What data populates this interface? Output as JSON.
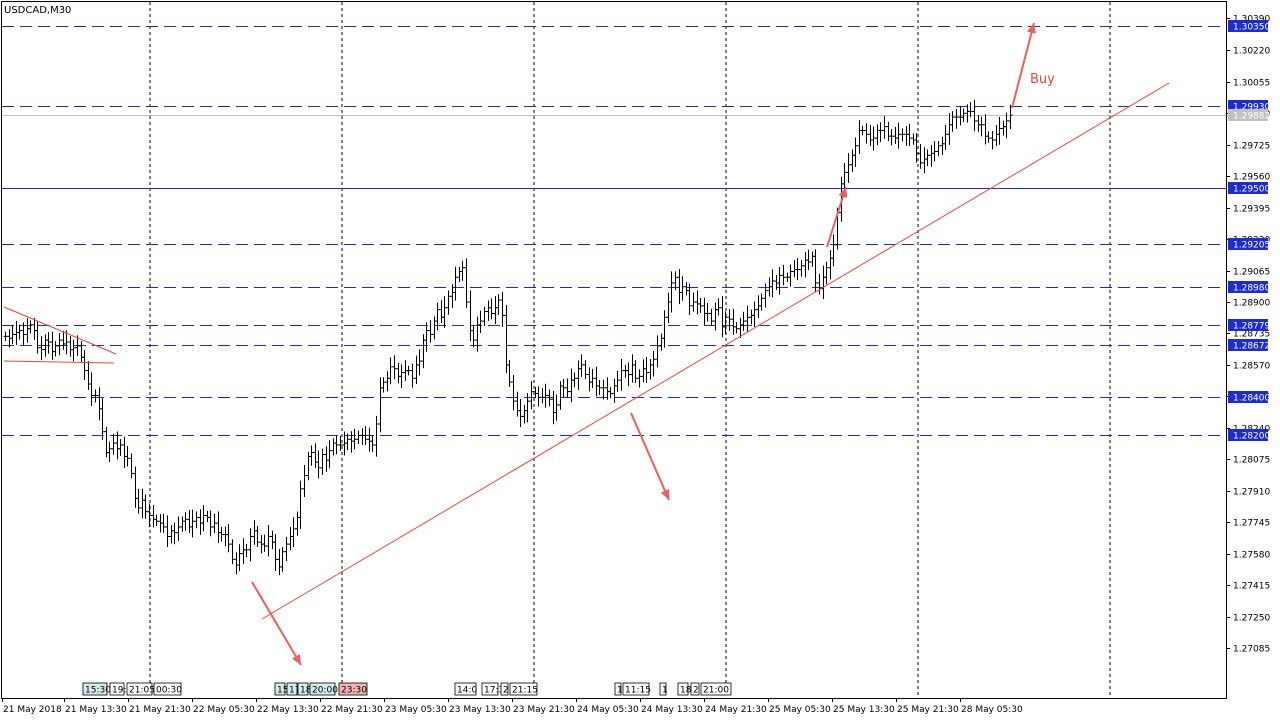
{
  "chart_data": {
    "type": "candlestick",
    "title": "USDCAD,M30",
    "symbol": "USDCAD",
    "timeframe": "M30",
    "ylim": [
      1.2698,
      1.3039
    ],
    "y_ticks": [
      "1.30390",
      "1.30220",
      "1.30055",
      "1.29890",
      "1.29725",
      "1.29560",
      "1.29395",
      "1.29230",
      "1.29065",
      "1.28900",
      "1.28735",
      "1.28570",
      "1.28405",
      "1.28240",
      "1.28075",
      "1.27910",
      "1.27745",
      "1.27580",
      "1.27415",
      "1.27250",
      "1.27085"
    ],
    "x_ticks": [
      "21 May 2018",
      "21 May 13:30",
      "21 May 21:30",
      "22 May 05:30",
      "22 May 13:30",
      "22 May 21:30",
      "23 May 05:30",
      "23 May 13:30",
      "23 May 21:30",
      "24 May 05:30",
      "24 May 13:30",
      "24 May 21:30",
      "25 May 05:30",
      "25 May 13:30",
      "25 May 21:30",
      "28 May 05:30"
    ],
    "price_levels": [
      {
        "price": 1.3035,
        "label": "1.30350",
        "style": "dashed",
        "color": "#1d2bd4"
      },
      {
        "price": 1.2993,
        "label": "1.29930",
        "style": "dashed",
        "color": "#1d2bd4"
      },
      {
        "price": 1.29882,
        "label": "1.29882",
        "style": "solid",
        "color": "#c0c0c0",
        "current_price": true
      },
      {
        "price": 1.295,
        "label": "1.29500",
        "style": "solid",
        "color": "#1d2bd4"
      },
      {
        "price": 1.29205,
        "label": "1.29205",
        "style": "dashed",
        "color": "#1d2bd4"
      },
      {
        "price": 1.2898,
        "label": "1.28980",
        "style": "dashed",
        "color": "#1d2bd4"
      },
      {
        "price": 1.28779,
        "label": "1.28779",
        "style": "dashed",
        "color": "#1d2bd4"
      },
      {
        "price": 1.28672,
        "label": "1.28672",
        "style": "dashed",
        "color": "#1d2bd4"
      },
      {
        "price": 1.284,
        "label": "1.28400",
        "style": "dashed",
        "color": "#1d2bd4"
      },
      {
        "price": 1.282,
        "label": "1.28200",
        "style": "dashed",
        "color": "#1d2bd4"
      }
    ],
    "closes": [
      1.2872,
      1.2871,
      1.2873,
      1.2874,
      1.2875,
      1.2873,
      1.2876,
      1.2878,
      1.2875,
      1.2866,
      1.2865,
      1.287,
      1.2869,
      1.2864,
      1.2867,
      1.287,
      1.2868,
      1.2869,
      1.2865,
      1.2866,
      1.2867,
      1.2861,
      1.2854,
      1.2847,
      1.2841,
      1.2841,
      1.2834,
      1.2822,
      1.2811,
      1.2813,
      1.2816,
      1.2813,
      1.2815,
      1.2809,
      1.2808,
      1.28,
      1.2787,
      1.2782,
      1.2786,
      1.278,
      1.2778,
      1.2776,
      1.2775,
      1.2774,
      1.2772,
      1.2767,
      1.277,
      1.2769,
      1.2772,
      1.2775,
      1.2776,
      1.2772,
      1.2775,
      1.2777,
      1.2774,
      1.2778,
      1.2777,
      1.2772,
      1.2774,
      1.2769,
      1.2768,
      1.2768,
      1.2763,
      1.2755,
      1.2752,
      1.2758,
      1.276,
      1.276,
      1.2767,
      1.277,
      1.2764,
      1.2763,
      1.2762,
      1.2767,
      1.2764,
      1.2755,
      1.2751,
      1.2759,
      1.2763,
      1.2767,
      1.2771,
      1.2777,
      1.2792,
      1.2799,
      1.2809,
      1.2811,
      1.2806,
      1.2803,
      1.281,
      1.2807,
      1.2812,
      1.2816,
      1.2815,
      1.2815,
      1.2816,
      1.2818,
      1.2817,
      1.2818,
      1.282,
      1.282,
      1.2818,
      1.2817,
      1.2815,
      1.2826,
      1.2845,
      1.2848,
      1.285,
      1.2856,
      1.2855,
      1.2851,
      1.2853,
      1.2854,
      1.2854,
      1.285,
      1.2857,
      1.2859,
      1.287,
      1.2875,
      1.2873,
      1.288,
      1.2886,
      1.2882,
      1.2887,
      1.2893,
      1.2895,
      1.2903,
      1.2906,
      1.2908,
      1.289,
      1.2875,
      1.287,
      1.2878,
      1.288,
      1.2885,
      1.2887,
      1.2884,
      1.2887,
      1.2891,
      1.2883,
      1.2857,
      1.2848,
      1.2838,
      1.2833,
      1.283,
      1.2833,
      1.2838,
      1.2843,
      1.2842,
      1.284,
      1.284,
      1.2841,
      1.2839,
      1.2832,
      1.2836,
      1.2846,
      1.2845,
      1.2843,
      1.2849,
      1.285,
      1.2855,
      1.2857,
      1.2852,
      1.2848,
      1.285,
      1.2846,
      1.2845,
      1.2845,
      1.2843,
      1.2842,
      1.2846,
      1.2849,
      1.2854,
      1.2854,
      1.2852,
      1.2857,
      1.285,
      1.2851,
      1.2855,
      1.2853,
      1.2857,
      1.286,
      1.2867,
      1.2871,
      1.2882,
      1.289,
      1.29,
      1.2903,
      1.2895,
      1.2898,
      1.2896,
      1.2888,
      1.289,
      1.2889,
      1.2888,
      1.2884,
      1.2884,
      1.288,
      1.2886,
      1.2887,
      1.2877,
      1.2882,
      1.2881,
      1.2877,
      1.2876,
      1.2878,
      1.288,
      1.2882,
      1.2883,
      1.2886,
      1.2888,
      1.2892,
      1.2896,
      1.2898,
      1.2901,
      1.29,
      1.2904,
      1.2903,
      1.2903,
      1.2906,
      1.2907,
      1.2907,
      1.2909,
      1.2912,
      1.2911,
      1.2914,
      1.29,
      1.2897,
      1.2903,
      1.2908,
      1.2913,
      1.292,
      1.2937,
      1.2952,
      1.2958,
      1.2962,
      1.2967,
      1.2972,
      1.298,
      1.298,
      1.2978,
      1.2975,
      1.2976,
      1.298,
      1.298,
      1.2982,
      1.2977,
      1.2977,
      1.2976,
      1.2978,
      1.2978,
      1.2978,
      1.2976,
      1.2975,
      1.2968,
      1.2963,
      1.2965,
      1.2967,
      1.2968,
      1.2969,
      1.2972,
      1.2973,
      1.2978,
      1.2983,
      1.2987,
      1.2987,
      1.2987,
      1.2989,
      1.299,
      1.299,
      1.2985,
      1.2983,
      1.2983,
      1.2977,
      1.2976,
      1.2975,
      1.2978,
      1.2981,
      1.2982,
      1.2985,
      1.2988
    ]
  },
  "time_markers": [
    {
      "label": "15:30",
      "color": "#d3ecec"
    },
    {
      "label": "19:",
      "color": "#ffffff"
    },
    {
      "label": "21:05",
      "color": "#ffffff"
    },
    {
      "label": "00:30",
      "color": "#ffffff"
    },
    {
      "label": "15",
      "color": "#d3ecec"
    },
    {
      "label": "17",
      "color": "#d3ecec"
    },
    {
      "label": "18",
      "color": "#d3ecec"
    },
    {
      "label": "20:00",
      "color": "#d3ecec"
    },
    {
      "label": "23:30",
      "color": "#f4b3b3"
    },
    {
      "label": "14:0",
      "color": "#ffffff"
    },
    {
      "label": "17:3",
      "color": "#ffffff"
    },
    {
      "label": "2",
      "color": "#ffffff"
    },
    {
      "label": "21:15",
      "color": "#ffffff"
    },
    {
      "label": "1",
      "color": "#ffffff"
    },
    {
      "label": "11:15",
      "color": "#ffffff"
    },
    {
      "label": "1",
      "color": "#ffffff"
    },
    {
      "label": "18",
      "color": "#ffffff"
    },
    {
      "label": "2",
      "color": "#ffffff"
    },
    {
      "label": "21:00",
      "color": "#ffffff"
    }
  ],
  "annotations": {
    "buy_label": "Buy",
    "trendline_color": "#e8483c",
    "arrow_color": "#f25c5c"
  },
  "colors": {
    "candle": "#000000",
    "level_line": "#1d2bd4",
    "grid": "#000000",
    "label_box_bg": "#1d2bd4",
    "label_box_text": "#ffffff"
  }
}
